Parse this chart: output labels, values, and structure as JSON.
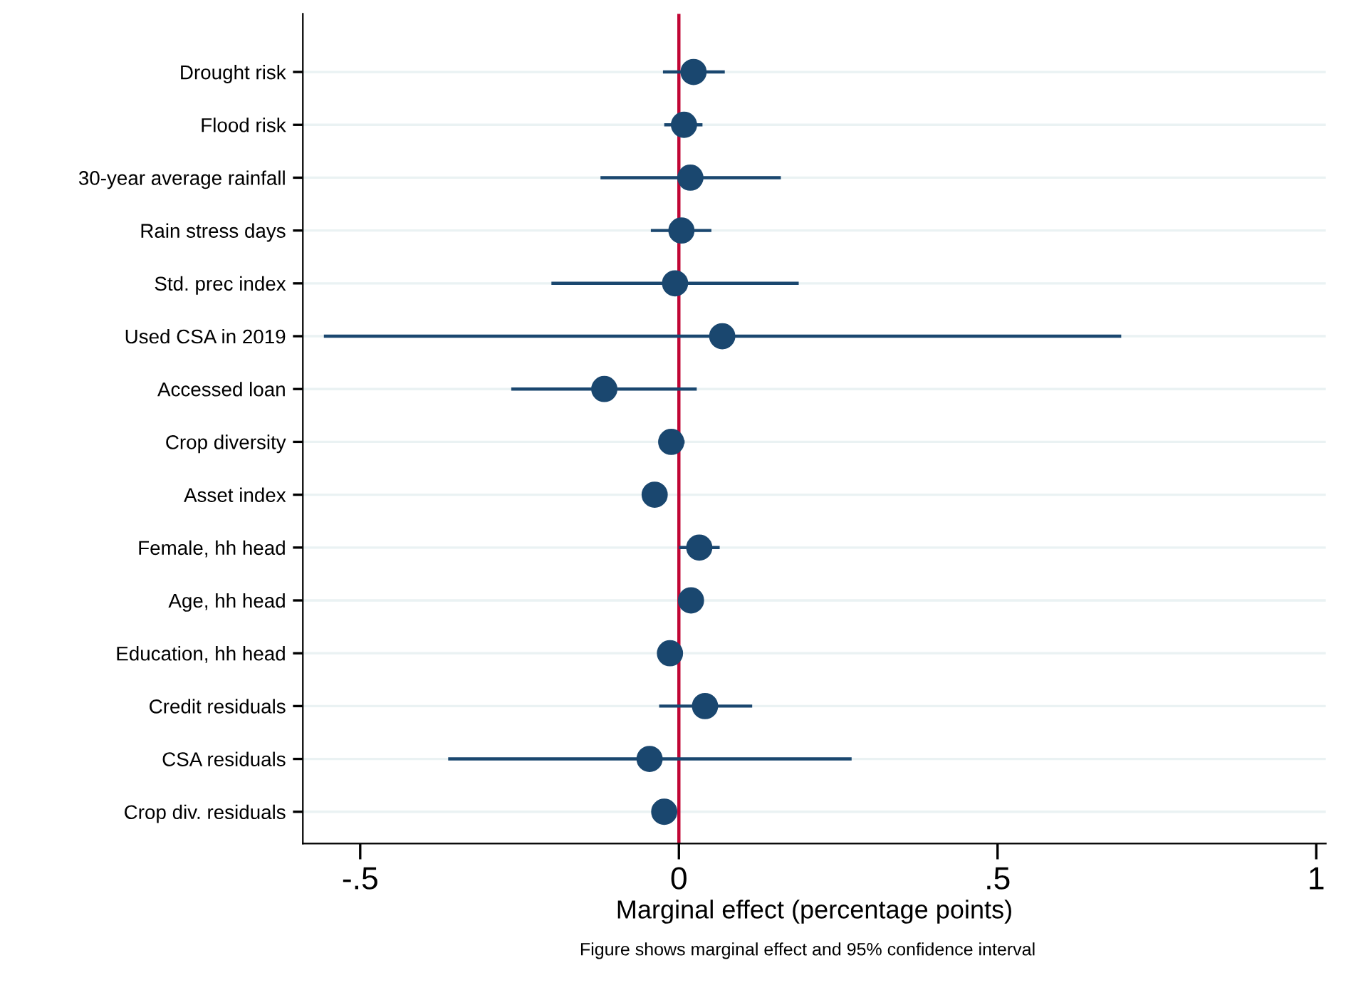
{
  "chart_data": {
    "type": "scatter",
    "orientation": "horizontal",
    "xlabel": "Marginal effect (percentage points)",
    "categories": [
      "Drought risk",
      "Flood risk",
      "30-year average rainfall",
      "Rain stress days",
      "Std. prec index",
      "Used CSA in 2019",
      "Accessed loan",
      "Crop diversity",
      "Asset index",
      "Female, hh head",
      "Age, hh head",
      "Education, hh head",
      "Credit residuals",
      "CSA residuals",
      "Crop div. residuals"
    ],
    "series": [
      {
        "color": "#1a476f",
        "values": [
          0.023,
          0.008,
          0.018,
          0.004,
          -0.006,
          0.068,
          -0.117,
          -0.012,
          -0.038,
          0.032,
          0.019,
          -0.014,
          0.041,
          -0.046,
          -0.023
        ],
        "errors": [
          [
            -0.025,
            0.072
          ],
          [
            -0.023,
            0.037
          ],
          [
            -0.123,
            0.16
          ],
          [
            -0.044,
            0.051
          ],
          [
            -0.2,
            0.188
          ],
          [
            -0.557,
            0.694
          ],
          [
            -0.263,
            0.028
          ],
          [
            -0.032,
            0.009
          ],
          null,
          [
            0.0,
            0.064
          ],
          null,
          null,
          [
            -0.031,
            0.115
          ],
          [
            -0.362,
            0.271
          ],
          [
            -0.04,
            -0.006
          ]
        ]
      }
    ],
    "xlim": [
      -0.59,
      1.015
    ],
    "xticks": [
      {
        "value": -0.5,
        "label": "-.5"
      },
      0,
      {
        "value": 0.5,
        "label": ".5"
      },
      1
    ],
    "ref_lines": [
      {
        "axis": "x",
        "value": 0,
        "color": "#c10534"
      }
    ],
    "grid": "y",
    "marker": "circle",
    "legend": false,
    "annotations": [
      "Figure shows marginal effect and 95% confidence interval"
    ]
  }
}
